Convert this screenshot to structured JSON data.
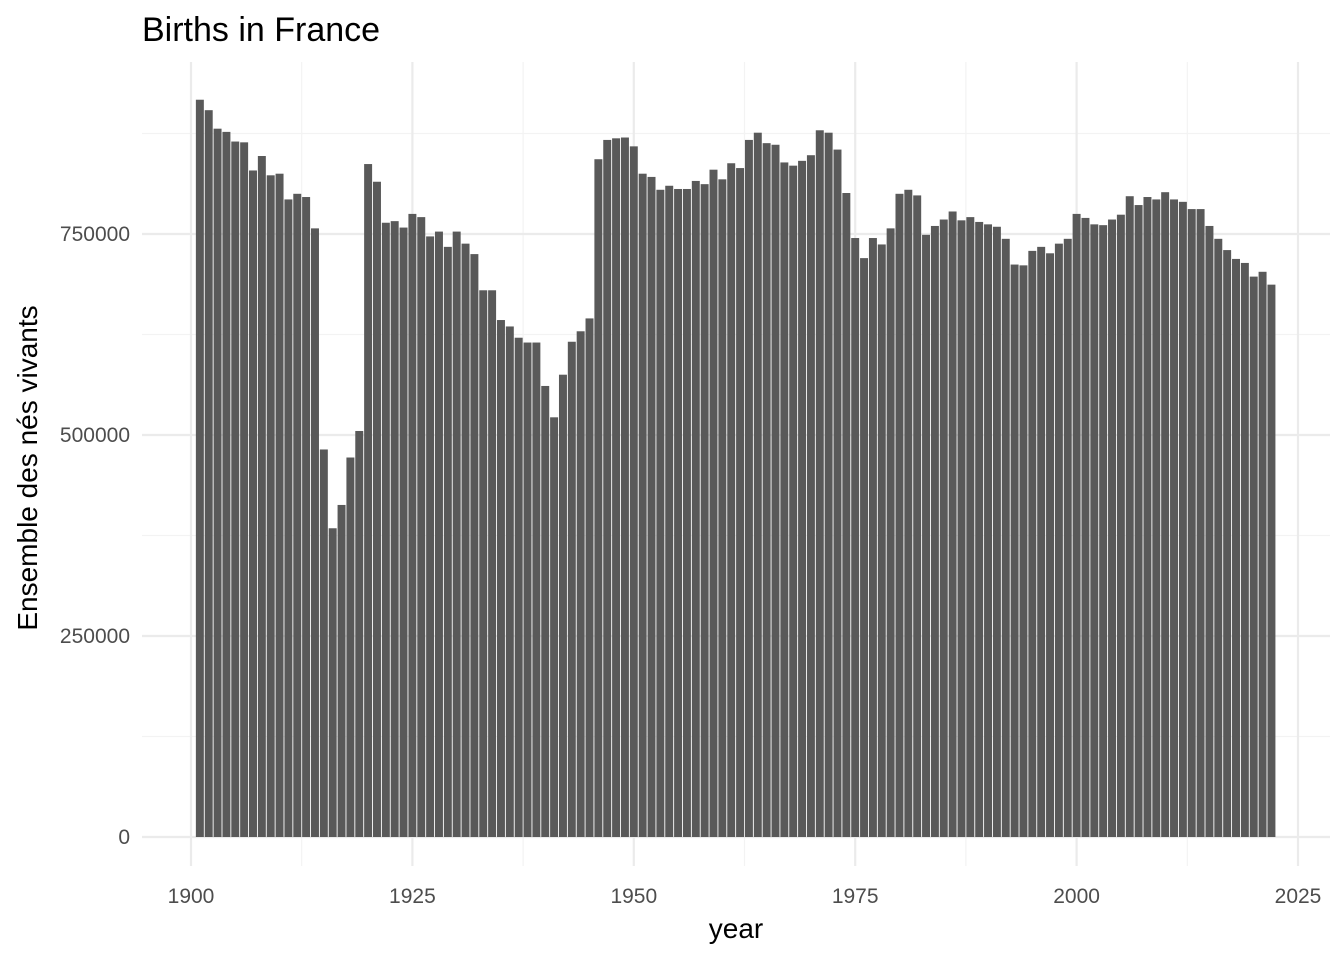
{
  "chart_data": {
    "type": "bar",
    "title": "Births in France",
    "xlabel": "year",
    "ylabel": "Ensemble des nés vivants",
    "xlim": [
      1898,
      2027
    ],
    "ylim": [
      0,
      950000
    ],
    "x_ticks": [
      1900,
      1925,
      1950,
      1975,
      2000,
      2025
    ],
    "y_ticks": [
      0,
      250000,
      500000,
      750000
    ],
    "y_tick_labels": [
      "0",
      "250000",
      "500000",
      "750000"
    ],
    "grid": true,
    "bar_color": "#595959",
    "x": [
      1901,
      1902,
      1903,
      1904,
      1905,
      1906,
      1907,
      1908,
      1909,
      1910,
      1911,
      1912,
      1913,
      1914,
      1915,
      1916,
      1917,
      1918,
      1919,
      1920,
      1921,
      1922,
      1923,
      1924,
      1925,
      1926,
      1927,
      1928,
      1929,
      1930,
      1931,
      1932,
      1933,
      1934,
      1935,
      1936,
      1937,
      1938,
      1939,
      1940,
      1941,
      1942,
      1943,
      1944,
      1945,
      1946,
      1947,
      1948,
      1949,
      1950,
      1951,
      1952,
      1953,
      1954,
      1955,
      1956,
      1957,
      1958,
      1959,
      1960,
      1961,
      1962,
      1963,
      1964,
      1965,
      1966,
      1967,
      1968,
      1969,
      1970,
      1971,
      1972,
      1973,
      1974,
      1975,
      1976,
      1977,
      1978,
      1979,
      1980,
      1981,
      1982,
      1983,
      1984,
      1985,
      1986,
      1987,
      1988,
      1989,
      1990,
      1991,
      1992,
      1993,
      1994,
      1995,
      1996,
      1997,
      1998,
      1999,
      2000,
      2001,
      2002,
      2003,
      2004,
      2005,
      2006,
      2007,
      2008,
      2009,
      2010,
      2011,
      2012,
      2013,
      2014,
      2015,
      2016,
      2017,
      2018,
      2019,
      2020,
      2021,
      2022
    ],
    "values": [
      917000,
      904000,
      881000,
      877000,
      865000,
      864000,
      829000,
      847000,
      823000,
      825000,
      793000,
      800000,
      796000,
      757000,
      482000,
      384000,
      413000,
      472000,
      505000,
      837000,
      815000,
      764000,
      766000,
      758000,
      775000,
      771000,
      747000,
      753000,
      734000,
      753000,
      738000,
      725000,
      680000,
      680000,
      643000,
      635000,
      621000,
      615000,
      615000,
      561000,
      522000,
      575000,
      616000,
      629000,
      645000,
      843000,
      867000,
      869000,
      870000,
      859000,
      825000,
      821000,
      805000,
      810000,
      806000,
      806000,
      816000,
      812000,
      830000,
      818000,
      838000,
      832000,
      867000,
      876000,
      863000,
      861000,
      839000,
      835000,
      841000,
      848000,
      879000,
      876000,
      855000,
      801000,
      745000,
      720000,
      745000,
      737000,
      757000,
      800000,
      805000,
      798000,
      749000,
      760000,
      768000,
      778000,
      767000,
      771000,
      765000,
      762000,
      759000,
      744000,
      712000,
      711000,
      729000,
      734000,
      726000,
      738000,
      744000,
      775000,
      770000,
      762000,
      761000,
      768000,
      774000,
      797000,
      786000,
      796000,
      793000,
      802000,
      793000,
      790000,
      781000,
      781000,
      760000,
      744000,
      730000,
      719000,
      714000,
      697000,
      703000,
      687000
    ]
  }
}
